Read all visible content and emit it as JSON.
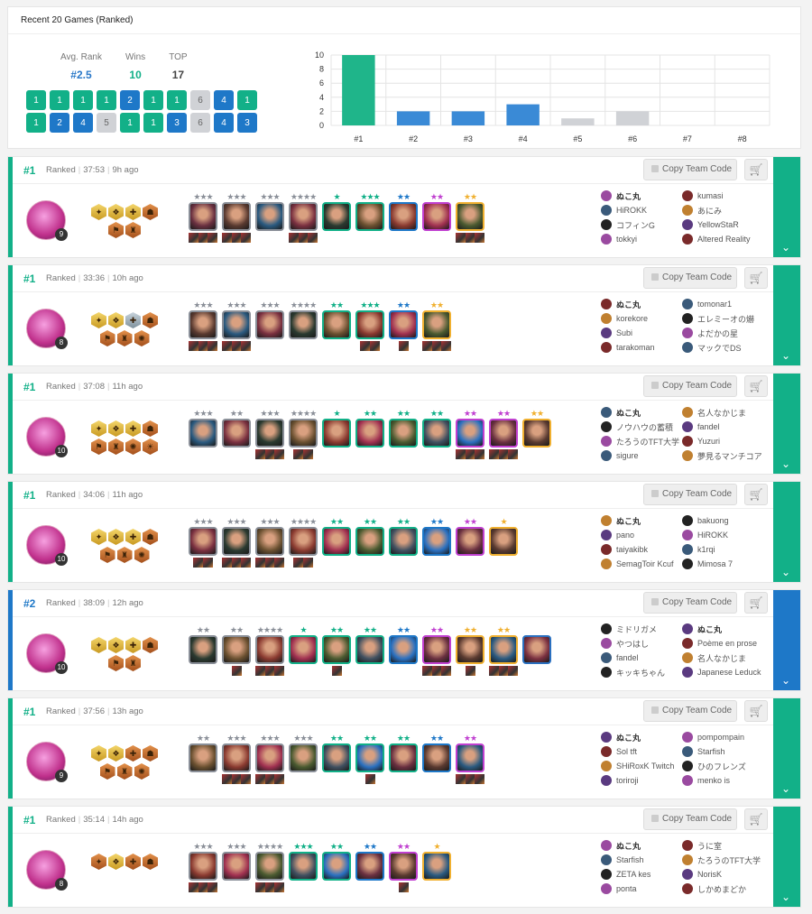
{
  "summary": {
    "title": "Recent 20 Games (Ranked)",
    "stats": [
      {
        "label": "Avg. Rank",
        "value": "#2.5",
        "color": "#2a78c8"
      },
      {
        "label": "Wins",
        "value": "10",
        "color": "#12b088"
      },
      {
        "label": "TOP",
        "value": "17",
        "color": "#444"
      }
    ],
    "placements": [
      1,
      1,
      1,
      1,
      2,
      1,
      1,
      6,
      4,
      1,
      1,
      2,
      4,
      5,
      1,
      1,
      3,
      6,
      4,
      3
    ]
  },
  "colors": {
    "win": "#12b088",
    "top": "#1e78c8",
    "low": "#d0d2d6",
    "stars": {
      "gray": "#8a8f98",
      "green": "#12b088",
      "blue": "#1e78c8",
      "purple": "#c040d0",
      "gold": "#f0b030"
    }
  },
  "chart_data": {
    "type": "bar",
    "categories": [
      "#1",
      "#2",
      "#3",
      "#4",
      "#5",
      "#6",
      "#7",
      "#8"
    ],
    "values": [
      10,
      2,
      2,
      3,
      1,
      2,
      0,
      0
    ],
    "yticks": [
      0,
      2,
      4,
      6,
      8,
      10
    ],
    "ylim": [
      0,
      10
    ],
    "grid": true,
    "bar_colors": [
      "#1fb58a",
      "#3a8ad6",
      "#3a8ad6",
      "#3a8ad6",
      "#d0d2d6",
      "#d0d2d6",
      "#d0d2d6",
      "#d0d2d6"
    ]
  },
  "copy_label": "Copy Team Code",
  "matches": [
    {
      "rank": "#1",
      "mode": "Ranked",
      "duration": "37:53",
      "ago": "9h ago",
      "level": "9",
      "color": "#12b088",
      "traits": [
        "gold",
        "gold",
        "gold",
        "bronze",
        "bronze",
        "bronze"
      ],
      "units": [
        [
          3,
          "gray",
          3
        ],
        [
          3,
          "gray",
          3
        ],
        [
          3,
          "gray",
          0
        ],
        [
          4,
          "gray",
          3
        ],
        [
          1,
          "green",
          0
        ],
        [
          3,
          "green",
          0
        ],
        [
          2,
          "blue",
          0
        ],
        [
          2,
          "purple",
          0
        ],
        [
          2,
          "gold",
          3
        ]
      ],
      "players": [
        "ぬこ丸",
        "kumasi",
        "HiROKK",
        "あにみ",
        "コフィンG",
        "YellowStaR",
        "tokkyi",
        "Altered Reality"
      ]
    },
    {
      "rank": "#1",
      "mode": "Ranked",
      "duration": "33:36",
      "ago": "10h ago",
      "level": "8",
      "color": "#12b088",
      "traits": [
        "gold",
        "gold",
        "silver",
        "bronze",
        "bronze",
        "bronze",
        "bronze"
      ],
      "units": [
        [
          3,
          "gray",
          3
        ],
        [
          3,
          "gray",
          3
        ],
        [
          3,
          "gray",
          0
        ],
        [
          4,
          "gray",
          0
        ],
        [
          2,
          "green",
          0
        ],
        [
          3,
          "green",
          2
        ],
        [
          2,
          "blue",
          1
        ],
        [
          2,
          "gold",
          3
        ]
      ],
      "players": [
        "ぬこ丸",
        "tomonar1",
        "korekore",
        "エレミーオの爀",
        "Subi",
        "よだかの星",
        "tarakoman",
        "マックでDS"
      ]
    },
    {
      "rank": "#1",
      "mode": "Ranked",
      "duration": "37:08",
      "ago": "11h ago",
      "level": "10",
      "color": "#12b088",
      "traits": [
        "gold",
        "gold",
        "gold",
        "bronze",
        "bronze",
        "bronze",
        "bronze",
        "bronze"
      ],
      "units": [
        [
          3,
          "gray",
          0
        ],
        [
          2,
          "gray",
          0
        ],
        [
          3,
          "gray",
          3
        ],
        [
          4,
          "gray",
          2
        ],
        [
          1,
          "green",
          0
        ],
        [
          2,
          "green",
          0
        ],
        [
          2,
          "green",
          0
        ],
        [
          2,
          "green",
          0
        ],
        [
          2,
          "purple",
          3
        ],
        [
          2,
          "purple",
          3
        ],
        [
          2,
          "gold",
          0
        ]
      ],
      "players": [
        "ぬこ丸",
        "名人なかじま",
        "ノウハウの蓄積",
        "fandel",
        "たろうのTFT大学",
        "Yuzuri",
        "sigure",
        "夢見るマンチコア"
      ]
    },
    {
      "rank": "#1",
      "mode": "Ranked",
      "duration": "34:06",
      "ago": "11h ago",
      "level": "10",
      "color": "#12b088",
      "traits": [
        "gold",
        "gold",
        "gold",
        "bronze",
        "bronze",
        "bronze",
        "bronze"
      ],
      "units": [
        [
          3,
          "gray",
          2
        ],
        [
          3,
          "gray",
          3
        ],
        [
          3,
          "gray",
          3
        ],
        [
          4,
          "gray",
          2
        ],
        [
          2,
          "green",
          0
        ],
        [
          2,
          "green",
          0
        ],
        [
          2,
          "green",
          0
        ],
        [
          2,
          "blue",
          0
        ],
        [
          2,
          "purple",
          0
        ],
        [
          1,
          "gold",
          0
        ]
      ],
      "players": [
        "ぬこ丸",
        "bakuong",
        "pano",
        "HiROKK",
        "taiyakibk",
        "k1rqi",
        "SemagToir Kcuf",
        "Mimosa 7"
      ]
    },
    {
      "rank": "#2",
      "mode": "Ranked",
      "duration": "38:09",
      "ago": "12h ago",
      "level": "10",
      "color": "#1e78c8",
      "traits": [
        "gold",
        "gold",
        "gold",
        "bronze",
        "bronze",
        "bronze"
      ],
      "units": [
        [
          2,
          "gray",
          0
        ],
        [
          2,
          "gray",
          1
        ],
        [
          4,
          "gray",
          3
        ],
        [
          1,
          "green",
          0
        ],
        [
          2,
          "green",
          1
        ],
        [
          2,
          "green",
          0
        ],
        [
          2,
          "blue",
          0
        ],
        [
          2,
          "purple",
          3
        ],
        [
          2,
          "gold",
          1
        ],
        [
          2,
          "gold",
          3
        ],
        [
          0,
          "blue",
          0
        ]
      ],
      "players": [
        "ミドリガメ",
        "ぬこ丸",
        "やつはし",
        "Poème en prose",
        "fandel",
        "名人なかじま",
        "キッキちゃん",
        "Japanese Leduck"
      ]
    },
    {
      "rank": "#1",
      "mode": "Ranked",
      "duration": "37:56",
      "ago": "13h ago",
      "level": "9",
      "color": "#12b088",
      "traits": [
        "gold",
        "gold",
        "bronze",
        "bronze",
        "bronze",
        "bronze",
        "bronze"
      ],
      "units": [
        [
          2,
          "gray",
          0
        ],
        [
          3,
          "gray",
          3
        ],
        [
          3,
          "gray",
          3
        ],
        [
          3,
          "gray",
          0
        ],
        [
          2,
          "green",
          0
        ],
        [
          2,
          "green",
          1
        ],
        [
          2,
          "green",
          0
        ],
        [
          2,
          "blue",
          0
        ],
        [
          2,
          "purple",
          3
        ]
      ],
      "players": [
        "ぬこ丸",
        "pompompain",
        "Sol tft",
        "Starfish",
        "SHiRoxK Twitch",
        "ひのフレンズ",
        "toriroji",
        "menko is"
      ]
    },
    {
      "rank": "#1",
      "mode": "Ranked",
      "duration": "35:14",
      "ago": "14h ago",
      "level": "8",
      "color": "#12b088",
      "traits": [
        "bronze",
        "gold",
        "bronze",
        "bronze"
      ],
      "units": [
        [
          3,
          "gray",
          3
        ],
        [
          3,
          "gray",
          0
        ],
        [
          4,
          "gray",
          3
        ],
        [
          3,
          "green",
          0
        ],
        [
          2,
          "green",
          0
        ],
        [
          2,
          "blue",
          0
        ],
        [
          2,
          "purple",
          1
        ],
        [
          1,
          "gold",
          0
        ]
      ],
      "players": [
        "ぬこ丸",
        "うに室",
        "Starfish",
        "たろうのTFT大学",
        "ZETA kes",
        "NorisK",
        "ponta",
        "しかめまどか"
      ]
    }
  ]
}
